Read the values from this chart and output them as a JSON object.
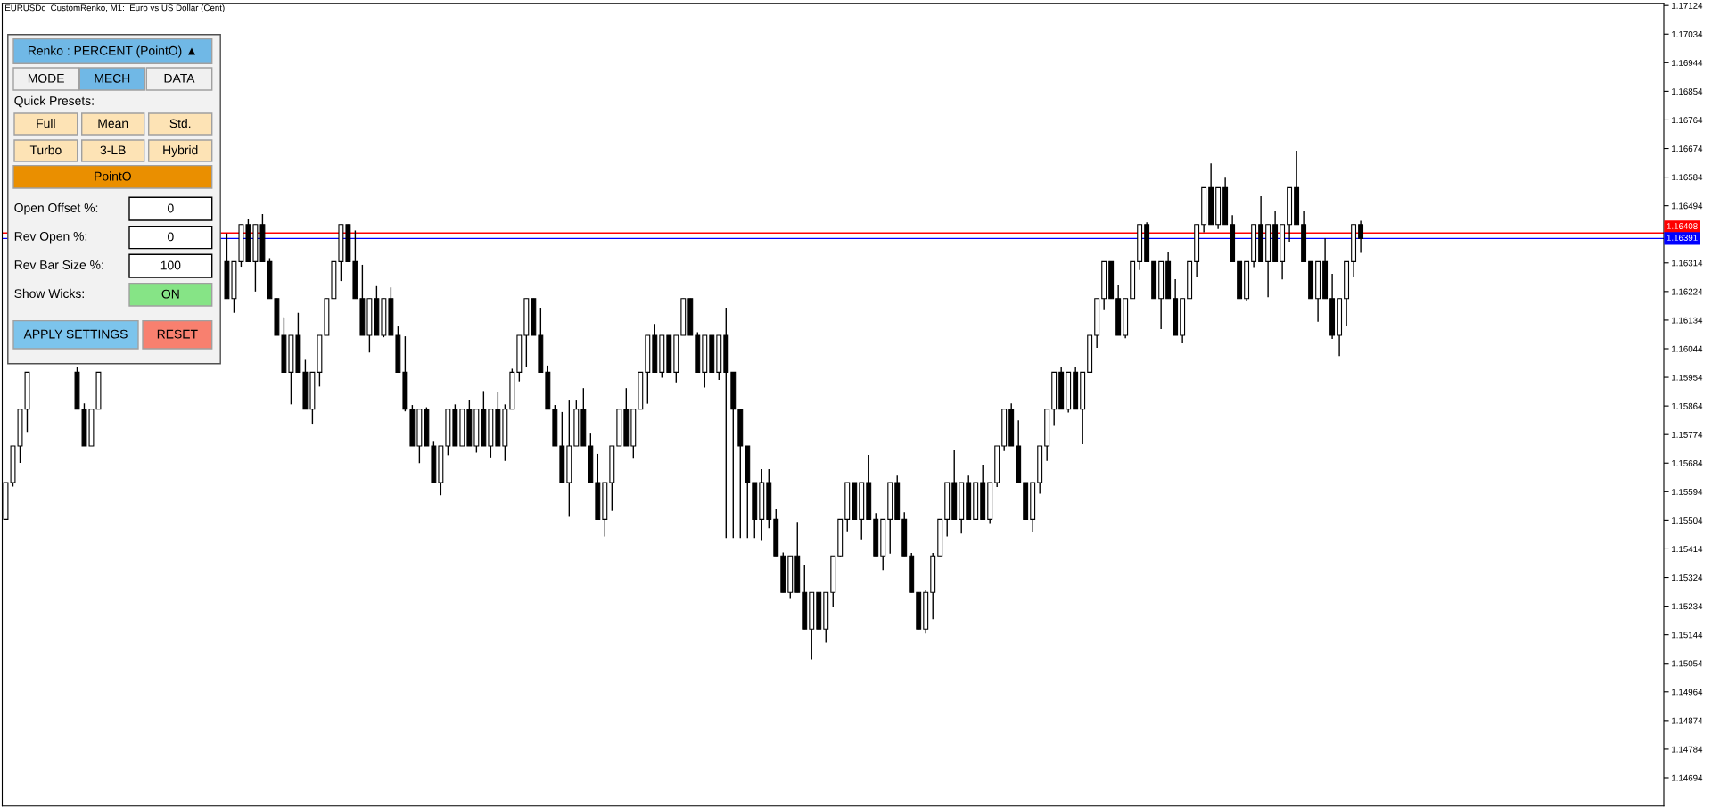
{
  "chart_data": [
    {
      "type": "candlestick",
      "title": "EURUSDc_CustomRenko, M1:  Euro vs US Dollar (Cent)",
      "categories": [
        null,
        null,
        null,
        null,
        null,
        null,
        null,
        null,
        null,
        null,
        null,
        null,
        null,
        null,
        null,
        null,
        null,
        null,
        null,
        null,
        null,
        null,
        null,
        null,
        null,
        null,
        null,
        null,
        null,
        null,
        null,
        null,
        null,
        null,
        null,
        null,
        null,
        null,
        null,
        null,
        null,
        null,
        null,
        null,
        null,
        null,
        null,
        null,
        null,
        null,
        null,
        null,
        null,
        null,
        null,
        null,
        null,
        null,
        null,
        null,
        null,
        null,
        null,
        null,
        null,
        null,
        null,
        null,
        null,
        null,
        null,
        null,
        null,
        null,
        null,
        null,
        null,
        null,
        null,
        null,
        null,
        null,
        null,
        null,
        null,
        null,
        null,
        null,
        null,
        null,
        null,
        null,
        null,
        null,
        null,
        null,
        null,
        null,
        null,
        null,
        null,
        null,
        null,
        null,
        null,
        null,
        null,
        null,
        null,
        null,
        null,
        null,
        null,
        null,
        null,
        null,
        null,
        null,
        null,
        null,
        null,
        null,
        null,
        null,
        null,
        null,
        null,
        null,
        null,
        null,
        null,
        null,
        null,
        null,
        null,
        null,
        null,
        null,
        null,
        null,
        null,
        null,
        null,
        null,
        null,
        null,
        null,
        null,
        null,
        null,
        null,
        null,
        null,
        null,
        null,
        null,
        null,
        null,
        null,
        null,
        null,
        null,
        null,
        null,
        null,
        null,
        null,
        null,
        null,
        null,
        null,
        null,
        null,
        null,
        null,
        null,
        null,
        null,
        null,
        null,
        null,
        null,
        null,
        null,
        null,
        null,
        null,
        null,
        null,
        null,
        null,
        null,
        null,
        null,
        null,
        null,
        null,
        null,
        null,
        null,
        null,
        null,
        null,
        null,
        null,
        null,
        null,
        null,
        null,
        null,
        null,
        null,
        null,
        null,
        null,
        null,
        null,
        null,
        null,
        null,
        null,
        null,
        null,
        null,
        null,
        null,
        null,
        null,
        null,
        null,
        null,
        null,
        null
      ],
      "ohlc": [
        [
          1.15507,
          1.15623,
          1.15507,
          1.15623
        ],
        [
          1.15623,
          1.15738,
          1.1561,
          1.15738
        ],
        [
          1.15738,
          1.15854,
          1.15685,
          1.15854
        ],
        [
          1.15854,
          1.1597,
          1.15782,
          1.1597
        ],
        null,
        null,
        null,
        null,
        null,
        null,
        [
          1.1597,
          1.15988,
          1.15854,
          1.15854
        ],
        [
          1.15854,
          1.15872,
          1.15738,
          1.15738
        ],
        [
          1.15738,
          1.15854,
          1.15738,
          1.15854
        ],
        [
          1.15854,
          1.1597,
          1.15854,
          1.1597
        ],
        null,
        null,
        null,
        null,
        null,
        null,
        null,
        null,
        null,
        null,
        null,
        null,
        null,
        null,
        null,
        null,
        null,
        [
          1.16318,
          1.16407,
          1.16202,
          1.16202
        ],
        [
          1.16202,
          1.16318,
          1.16157,
          1.16318
        ],
        [
          1.16318,
          1.16435,
          1.16302,
          1.16435
        ],
        [
          1.16435,
          1.16453,
          1.16318,
          1.16318
        ],
        [
          1.16318,
          1.16435,
          1.16224,
          1.16435
        ],
        [
          1.16435,
          1.16468,
          1.16318,
          1.16318
        ],
        [
          1.16318,
          1.16329,
          1.16202,
          1.16202
        ],
        [
          1.16202,
          1.16202,
          1.16086,
          1.16086
        ],
        [
          1.16086,
          1.16143,
          1.1597,
          1.1597
        ],
        [
          1.1597,
          1.16086,
          1.15869,
          1.16086
        ],
        [
          1.16086,
          1.16157,
          1.1597,
          1.1597
        ],
        [
          1.1597,
          1.16009,
          1.15854,
          1.15854
        ],
        [
          1.15854,
          1.1597,
          1.15808,
          1.1597
        ],
        [
          1.1597,
          1.16086,
          1.15925,
          1.16086
        ],
        [
          1.16086,
          1.16202,
          1.16086,
          1.16202
        ],
        [
          1.16202,
          1.16318,
          1.16202,
          1.16318
        ],
        [
          1.16318,
          1.16435,
          1.16257,
          1.16435
        ],
        [
          1.16435,
          1.16435,
          1.16318,
          1.16318
        ],
        [
          1.16318,
          1.16416,
          1.16202,
          1.16202
        ],
        [
          1.16202,
          1.16308,
          1.16086,
          1.16086
        ],
        [
          1.16086,
          1.16202,
          1.16032,
          1.16202
        ],
        [
          1.16202,
          1.16241,
          1.16086,
          1.16086
        ],
        [
          1.16086,
          1.16202,
          1.1608,
          1.16202
        ],
        [
          1.16202,
          1.16237,
          1.16086,
          1.16086
        ],
        [
          1.16086,
          1.16114,
          1.1597,
          1.1597
        ],
        [
          1.1597,
          1.16083,
          1.15847,
          1.15854
        ],
        [
          1.15854,
          1.15867,
          1.15738,
          1.15738
        ],
        [
          1.15738,
          1.15854,
          1.15684,
          1.15854
        ],
        [
          1.15854,
          1.1586,
          1.15738,
          1.15738
        ],
        [
          1.15738,
          1.15754,
          1.15623,
          1.15623
        ],
        [
          1.15623,
          1.15738,
          1.15583,
          1.15738
        ],
        [
          1.15738,
          1.15854,
          1.15709,
          1.15854
        ],
        [
          1.15854,
          1.15869,
          1.15738,
          1.15738
        ],
        [
          1.15738,
          1.15854,
          1.15738,
          1.15854
        ],
        [
          1.15854,
          1.15883,
          1.15738,
          1.15738
        ],
        [
          1.15738,
          1.15854,
          1.15717,
          1.15854
        ],
        [
          1.15854,
          1.15911,
          1.15738,
          1.15738
        ],
        [
          1.15738,
          1.15854,
          1.15702,
          1.15854
        ],
        [
          1.15854,
          1.15908,
          1.15738,
          1.15738
        ],
        [
          1.15738,
          1.15869,
          1.15691,
          1.15854
        ],
        [
          1.15854,
          1.15981,
          1.15854,
          1.1597
        ],
        [
          1.1597,
          1.16086,
          1.15941,
          1.16086
        ],
        [
          1.16086,
          1.16202,
          1.15986,
          1.16202
        ],
        [
          1.16202,
          1.16202,
          1.16086,
          1.16086
        ],
        [
          1.16086,
          1.16173,
          1.1597,
          1.1597
        ],
        [
          1.1597,
          1.15991,
          1.15854,
          1.15854
        ],
        [
          1.15854,
          1.15867,
          1.15738,
          1.15738
        ],
        [
          1.15738,
          1.15845,
          1.15623,
          1.15623
        ],
        [
          1.15623,
          1.15881,
          1.15515,
          1.15738
        ],
        [
          1.15738,
          1.15881,
          1.15738,
          1.15854
        ],
        [
          1.15854,
          1.1592,
          1.15738,
          1.15738
        ],
        [
          1.15738,
          1.15777,
          1.15623,
          1.15623
        ],
        [
          1.15623,
          1.15713,
          1.15507,
          1.15507
        ],
        [
          1.15507,
          1.15623,
          1.15453,
          1.15623
        ],
        [
          1.15623,
          1.15738,
          1.15534,
          1.15738
        ],
        [
          1.15738,
          1.15854,
          1.15738,
          1.15854
        ],
        [
          1.15854,
          1.1592,
          1.15738,
          1.15738
        ],
        [
          1.15738,
          1.15854,
          1.15698,
          1.15854
        ],
        [
          1.15854,
          1.1597,
          1.15854,
          1.1597
        ],
        [
          1.1597,
          1.16086,
          1.15871,
          1.16086
        ],
        [
          1.16086,
          1.16122,
          1.1597,
          1.1597
        ],
        [
          1.1597,
          1.16086,
          1.15953,
          1.16086
        ],
        [
          1.16086,
          1.16086,
          1.1597,
          1.1597
        ],
        [
          1.1597,
          1.16086,
          1.15938,
          1.16086
        ],
        [
          1.16086,
          1.16202,
          1.16086,
          1.16202
        ],
        [
          1.16202,
          1.16202,
          1.16086,
          1.16086
        ],
        [
          1.16086,
          1.16096,
          1.1597,
          1.1597
        ],
        [
          1.1597,
          1.16086,
          1.15922,
          1.16086
        ],
        [
          1.16086,
          1.16086,
          1.1597,
          1.1597
        ],
        [
          1.1597,
          1.16086,
          1.15946,
          1.16086
        ],
        [
          1.16086,
          1.16173,
          1.15448,
          1.1597
        ],
        [
          1.1597,
          1.1597,
          1.15448,
          1.15854
        ],
        [
          1.15854,
          1.15854,
          1.15448,
          1.15738
        ],
        [
          1.15738,
          1.15738,
          1.15448,
          1.15623
        ],
        [
          1.15623,
          1.15623,
          1.15448,
          1.15507
        ],
        [
          1.15507,
          1.15665,
          1.15442,
          1.15623
        ],
        [
          1.15623,
          1.15665,
          1.15479,
          1.15507
        ],
        [
          1.15507,
          1.15539,
          1.15392,
          1.15392
        ],
        [
          1.15392,
          1.15403,
          1.15277,
          1.15277
        ],
        [
          1.15277,
          1.15392,
          1.15257,
          1.15392
        ],
        [
          1.15392,
          1.15499,
          1.15277,
          1.15277
        ],
        [
          1.15277,
          1.15362,
          1.15162,
          1.15162
        ],
        [
          1.15162,
          1.15277,
          1.15066,
          1.15277
        ],
        [
          1.15277,
          1.15277,
          1.15162,
          1.15162
        ],
        [
          1.15162,
          1.15277,
          1.15119,
          1.15277
        ],
        [
          1.15277,
          1.15392,
          1.15231,
          1.15392
        ],
        [
          1.15392,
          1.15507,
          1.15387,
          1.15507
        ],
        [
          1.15507,
          1.15623,
          1.15469,
          1.15623
        ],
        [
          1.15623,
          1.15623,
          1.15507,
          1.15507
        ],
        [
          1.15507,
          1.15623,
          1.15444,
          1.15623
        ],
        [
          1.15623,
          1.1571,
          1.15507,
          1.15507
        ],
        [
          1.15507,
          1.15527,
          1.15392,
          1.15392
        ],
        [
          1.15392,
          1.15507,
          1.15347,
          1.15507
        ],
        [
          1.15507,
          1.15623,
          1.15399,
          1.15623
        ],
        [
          1.15623,
          1.15645,
          1.15507,
          1.15507
        ],
        [
          1.15507,
          1.1553,
          1.15392,
          1.15392
        ],
        [
          1.15392,
          1.15401,
          1.15277,
          1.15277
        ],
        [
          1.15277,
          1.15277,
          1.15162,
          1.15162
        ],
        [
          1.15162,
          1.15286,
          1.15148,
          1.15277
        ],
        [
          1.15277,
          1.15401,
          1.15193,
          1.15392
        ],
        [
          1.15392,
          1.15507,
          1.15392,
          1.15507
        ],
        [
          1.15507,
          1.15623,
          1.15453,
          1.15623
        ],
        [
          1.15623,
          1.15724,
          1.15507,
          1.15507
        ],
        [
          1.15507,
          1.15623,
          1.15462,
          1.15623
        ],
        [
          1.15623,
          1.15645,
          1.15507,
          1.15507
        ],
        [
          1.15507,
          1.15623,
          1.15507,
          1.15623
        ],
        [
          1.15623,
          1.15679,
          1.15507,
          1.15507
        ],
        [
          1.15507,
          1.15623,
          1.15495,
          1.15623
        ],
        [
          1.15623,
          1.15738,
          1.15609,
          1.15738
        ],
        [
          1.15738,
          1.15854,
          1.15722,
          1.15854
        ],
        [
          1.15854,
          1.15872,
          1.15738,
          1.15738
        ],
        [
          1.15738,
          1.15819,
          1.15623,
          1.15623
        ],
        [
          1.15623,
          1.15623,
          1.15507,
          1.15507
        ],
        [
          1.15507,
          1.15623,
          1.15467,
          1.15623
        ],
        [
          1.15623,
          1.15738,
          1.15588,
          1.15738
        ],
        [
          1.15738,
          1.15854,
          1.15691,
          1.15854
        ],
        [
          1.15854,
          1.1597,
          1.15801,
          1.1597
        ],
        [
          1.1597,
          1.15986,
          1.15854,
          1.15854
        ],
        [
          1.15854,
          1.1597,
          1.15843,
          1.1597
        ],
        [
          1.1597,
          1.15988,
          1.15854,
          1.15854
        ],
        [
          1.15854,
          1.1597,
          1.15744,
          1.1597
        ],
        [
          1.1597,
          1.16086,
          1.1597,
          1.16086
        ],
        [
          1.16086,
          1.16202,
          1.16047,
          1.16202
        ],
        [
          1.16202,
          1.16318,
          1.16168,
          1.16318
        ],
        [
          1.16318,
          1.16318,
          1.16202,
          1.16202
        ],
        [
          1.16202,
          1.16246,
          1.16086,
          1.16086
        ],
        [
          1.16086,
          1.16202,
          1.16077,
          1.16202
        ],
        [
          1.16202,
          1.16318,
          1.16202,
          1.16318
        ],
        [
          1.16318,
          1.16435,
          1.16292,
          1.16435
        ],
        [
          1.16435,
          1.16442,
          1.16318,
          1.16318
        ],
        [
          1.16318,
          1.16318,
          1.16202,
          1.16202
        ],
        [
          1.16202,
          1.16318,
          1.16106,
          1.16318
        ],
        [
          1.16318,
          1.1635,
          1.16202,
          1.16202
        ],
        [
          1.16202,
          1.16263,
          1.16086,
          1.16086
        ],
        [
          1.16086,
          1.16202,
          1.16063,
          1.16202
        ],
        [
          1.16202,
          1.16318,
          1.16202,
          1.16318
        ],
        [
          1.16318,
          1.16435,
          1.16269,
          1.16435
        ],
        [
          1.16435,
          1.16551,
          1.1641,
          1.16551
        ],
        [
          1.16551,
          1.16627,
          1.16435,
          1.16435
        ],
        [
          1.16435,
          1.16551,
          1.16421,
          1.16551
        ],
        [
          1.16551,
          1.16582,
          1.16435,
          1.16435
        ],
        [
          1.16435,
          1.16464,
          1.16318,
          1.16318
        ],
        [
          1.16318,
          1.16318,
          1.16202,
          1.16202
        ],
        [
          1.16202,
          1.16318,
          1.16195,
          1.16318
        ],
        [
          1.16318,
          1.16435,
          1.16301,
          1.16435
        ],
        [
          1.16435,
          1.16524,
          1.16318,
          1.16318
        ],
        [
          1.16318,
          1.16435,
          1.16206,
          1.16435
        ],
        [
          1.16435,
          1.16479,
          1.16318,
          1.16318
        ],
        [
          1.16318,
          1.16435,
          1.16262,
          1.16435
        ],
        [
          1.16435,
          1.16551,
          1.16381,
          1.16551
        ],
        [
          1.16551,
          1.16667,
          1.16435,
          1.16435
        ],
        [
          1.16435,
          1.16476,
          1.16318,
          1.16318
        ],
        [
          1.16318,
          1.16318,
          1.16202,
          1.16202
        ],
        [
          1.16202,
          1.16318,
          1.16129,
          1.16318
        ],
        [
          1.16318,
          1.16391,
          1.16202,
          1.16202
        ],
        [
          1.16202,
          1.1628,
          1.16075,
          1.16086
        ],
        [
          1.16086,
          1.16202,
          1.16021,
          1.16202
        ],
        [
          1.16202,
          1.16318,
          1.16116,
          1.16318
        ],
        [
          1.16318,
          1.16435,
          1.16269,
          1.16435
        ],
        [
          1.16435,
          1.16447,
          1.16346,
          1.16391
        ],
        null,
        null,
        null,
        null,
        null,
        null,
        null,
        null,
        null,
        null,
        null,
        null,
        null,
        null,
        null,
        null,
        null,
        null,
        null,
        null,
        null,
        null,
        null,
        null,
        null,
        null,
        null,
        null,
        null,
        null,
        null,
        null,
        null,
        null,
        null,
        null,
        null,
        null,
        null,
        null,
        null,
        null
      ],
      "ylim": [
        1.14605,
        1.17131
      ],
      "yticks": [
        1.14694,
        1.14784,
        1.14874,
        1.14964,
        1.15054,
        1.15144,
        1.15234,
        1.15324,
        1.15414,
        1.15504,
        1.15594,
        1.15684,
        1.15774,
        1.15864,
        1.15954,
        1.16044,
        1.16134,
        1.16224,
        1.16314,
        1.16494,
        1.16584,
        1.16674,
        1.16764,
        1.16854,
        1.16944,
        1.17034,
        1.17124
      ],
      "tick_labels": "y",
      "ref_lines": [
        {
          "axis": "y",
          "value": 1.16408,
          "label": "1.16408",
          "color": "#ff0000"
        },
        {
          "axis": "y",
          "value": 1.16391,
          "label": "1.16391",
          "color": "#0000ff"
        }
      ]
    },
    {
      "type": "other",
      "annotations": [
        "Renko : PERCENT (PointO) ▲",
        "MODE",
        "MECH",
        "DATA",
        "Quick Presets:",
        "Full",
        "Mean",
        "Std.",
        "Turbo",
        "3-LB",
        "Hybrid",
        "PointO",
        "Open Offset %:",
        "0",
        "Rev Open %:",
        "0",
        "Rev Bar Size %:",
        "100",
        "Show Wicks:",
        "ON",
        "APPLY SETTINGS",
        "RESET"
      ]
    }
  ]
}
